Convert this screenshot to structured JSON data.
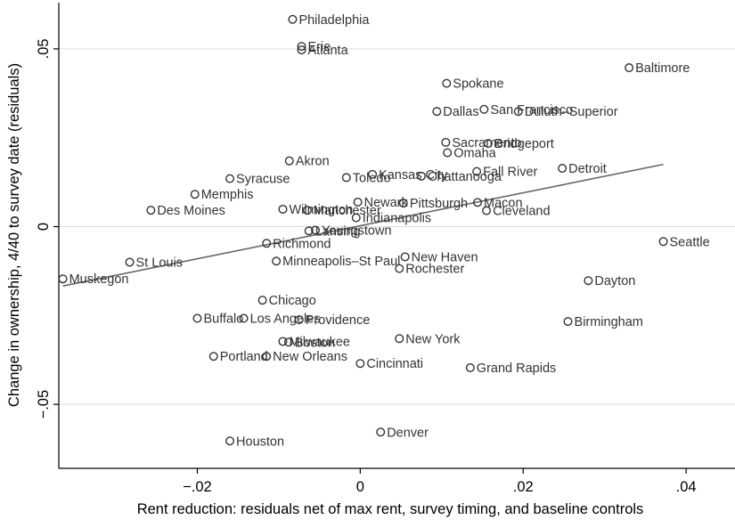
{
  "chart_data": {
    "type": "scatter",
    "title": "",
    "xlabel": "Rent reduction: residuals net of max rent, survey timing, and baseline controls",
    "ylabel": "Change in ownership, 4/40 to survey date (residuals)",
    "xlim": [
      -0.037,
      0.046
    ],
    "ylim": [
      -0.068,
      0.063
    ],
    "xticks": [
      -0.02,
      0,
      0.02,
      0.04
    ],
    "xtick_labels": [
      "−.02",
      "0",
      ".02",
      ".04"
    ],
    "yticks": [
      -0.05,
      0,
      0.05
    ],
    "ytick_labels": [
      "−.05",
      "0",
      ".05"
    ],
    "grid": true,
    "fit_line": {
      "x": [
        -0.0365,
        0.0372
      ],
      "y": [
        -0.0167,
        0.0175
      ]
    },
    "colors": {
      "marker": "#333333",
      "fit": "#666666",
      "grid": "#dddddd",
      "text": "#333333"
    },
    "points": [
      {
        "label": "Philadelphia",
        "x": -0.0083,
        "y": 0.0583
      },
      {
        "label": "Erie",
        "x": -0.0072,
        "y": 0.0507
      },
      {
        "label": "Atlanta",
        "x": -0.0072,
        "y": 0.0497
      },
      {
        "label": "Baltimore",
        "x": 0.033,
        "y": 0.0447
      },
      {
        "label": "Spokane",
        "x": 0.0106,
        "y": 0.0403
      },
      {
        "label": "San Francisco",
        "x": 0.0152,
        "y": 0.033
      },
      {
        "label": "Dallas",
        "x": 0.0094,
        "y": 0.0324
      },
      {
        "label": "Duluth–Superior",
        "x": 0.0194,
        "y": 0.0324
      },
      {
        "label": "Sacramento",
        "x": 0.0105,
        "y": 0.0237
      },
      {
        "label": "Bridgeport",
        "x": 0.0157,
        "y": 0.0234
      },
      {
        "label": "Omaha",
        "x": 0.0107,
        "y": 0.0208
      },
      {
        "label": "Akron",
        "x": -0.0087,
        "y": 0.0185
      },
      {
        "label": "Detroit",
        "x": 0.0248,
        "y": 0.0164
      },
      {
        "label": "Fall River",
        "x": 0.0143,
        "y": 0.0155
      },
      {
        "label": "Kansas City",
        "x": 0.0015,
        "y": 0.0147
      },
      {
        "label": "Chattanooga",
        "x": 0.0075,
        "y": 0.0142
      },
      {
        "label": "Toledo",
        "x": -0.0017,
        "y": 0.0138
      },
      {
        "label": "Syracuse",
        "x": -0.016,
        "y": 0.0135
      },
      {
        "label": "Memphis",
        "x": -0.0203,
        "y": 0.0091
      },
      {
        "label": "Newark",
        "x": -0.0003,
        "y": 0.0069
      },
      {
        "label": "Pittsburgh",
        "x": 0.0053,
        "y": 0.0066
      },
      {
        "label": "Macon",
        "x": 0.0144,
        "y": 0.0068
      },
      {
        "label": "Wilmington",
        "x": -0.0095,
        "y": 0.0049
      },
      {
        "label": "Manchester",
        "x": -0.0065,
        "y": 0.0046
      },
      {
        "label": "Des Moines",
        "x": -0.0257,
        "y": 0.0046
      },
      {
        "label": "Cleveland",
        "x": 0.0155,
        "y": 0.0045
      },
      {
        "label": "Indianapolis",
        "x": -0.0005,
        "y": 0.0025
      },
      {
        "label": "Youngstown",
        "x": -0.0055,
        "y": -0.001
      },
      {
        "label": "Lansing",
        "x": -0.0063,
        "y": -0.0012
      },
      {
        "label": "Richmond",
        "x": -0.0115,
        "y": -0.0047
      },
      {
        "label": "Seattle",
        "x": 0.0372,
        "y": -0.0042
      },
      {
        "label": "St Louis",
        "x": -0.0283,
        "y": -0.01
      },
      {
        "label": "Minneapolis–St Paul",
        "x": -0.0103,
        "y": -0.0097
      },
      {
        "label": "New Haven",
        "x": 0.0055,
        "y": -0.0085
      },
      {
        "label": "Rochester",
        "x": 0.0048,
        "y": -0.0118
      },
      {
        "label": "Muskegon",
        "x": -0.0365,
        "y": -0.0147
      },
      {
        "label": "Dayton",
        "x": 0.028,
        "y": -0.0152
      },
      {
        "label": "Chicago",
        "x": -0.012,
        "y": -0.0207
      },
      {
        "label": "Buffalo",
        "x": -0.02,
        "y": -0.0258
      },
      {
        "label": "Los Angeles",
        "x": -0.0143,
        "y": -0.0258
      },
      {
        "label": "Providence",
        "x": -0.0075,
        "y": -0.0262
      },
      {
        "label": "Birmingham",
        "x": 0.0255,
        "y": -0.0267
      },
      {
        "label": "New York",
        "x": 0.0048,
        "y": -0.0315
      },
      {
        "label": "Milwaukee",
        "x": -0.0095,
        "y": -0.0323
      },
      {
        "label": "Boston",
        "x": -0.0088,
        "y": -0.0325
      },
      {
        "label": "Portland",
        "x": -0.018,
        "y": -0.0365
      },
      {
        "label": "New Orleans",
        "x": -0.0115,
        "y": -0.0365
      },
      {
        "label": "Cincinnati",
        "x": 0.0,
        "y": -0.0385
      },
      {
        "label": "Grand Rapids",
        "x": 0.0135,
        "y": -0.0397
      },
      {
        "label": "Denver",
        "x": 0.0025,
        "y": -0.0578
      },
      {
        "label": "Houston",
        "x": -0.016,
        "y": -0.0603
      }
    ]
  }
}
